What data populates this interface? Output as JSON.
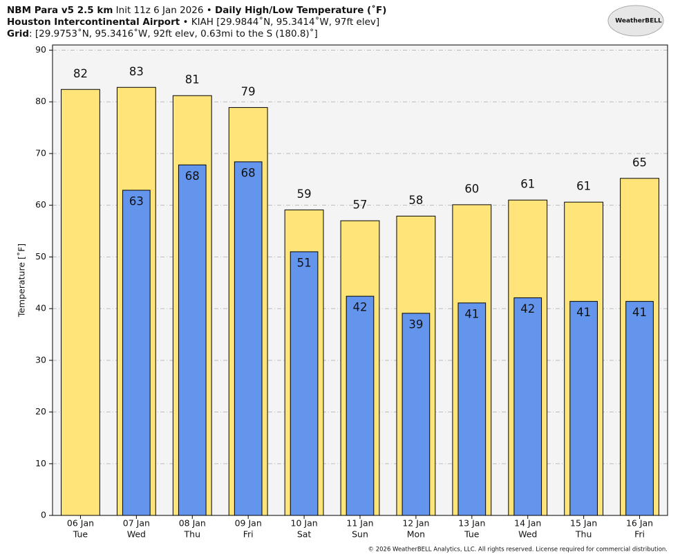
{
  "chart_data": {
    "type": "bar",
    "title_lines": [
      [
        "NBM Para v5 2.5 km",
        " Init 11z 6 Jan 2026 • ",
        "Daily High/Low Temperature (˚F)"
      ],
      [
        "Houston Intercontinental Airport",
        " • KIAH [29.9844˚N, 95.3414˚W, 97ft elev]"
      ],
      [
        "Grid",
        ": [29.9753˚N, 95.3416˚W, 92ft elev, 0.63mi to the S (180.8)˚]"
      ]
    ],
    "logo": "WeatherBELL",
    "footer": "© 2026 WeatherBELL Analytics, LLC. All rights reserved. License required for commercial distribution.",
    "y_label": "Temperature [˚F]",
    "categories": [
      "06 Jan",
      "07 Jan",
      "08 Jan",
      "09 Jan",
      "10 Jan",
      "11 Jan",
      "12 Jan",
      "13 Jan",
      "14 Jan",
      "15 Jan",
      "16 Jan"
    ],
    "weekdays": [
      "Tue",
      "Wed",
      "Thu",
      "Fri",
      "Sat",
      "Sun",
      "Mon",
      "Tue",
      "Wed",
      "Thu",
      "Fri"
    ],
    "series": [
      {
        "color": "#ffe47a",
        "values": [
          82.4,
          82.8,
          81.2,
          78.9,
          59.1,
          57.0,
          57.9,
          60.1,
          61.0,
          60.6,
          65.2
        ],
        "value_labels": [
          "82",
          "83",
          "81",
          "79",
          "59",
          "57",
          "58",
          "60",
          "61",
          "61",
          "65"
        ]
      },
      {
        "color": "#6495ed",
        "values": [
          null,
          62.9,
          67.8,
          68.4,
          51.0,
          42.4,
          39.1,
          41.1,
          42.1,
          41.4,
          41.4
        ],
        "value_labels": [
          null,
          "63",
          "68",
          "68",
          "51",
          "42",
          "39",
          "41",
          "42",
          "41",
          "41"
        ]
      }
    ],
    "ylim": [
      0,
      91
    ],
    "yticks": [
      0,
      10,
      20,
      30,
      40,
      50,
      60,
      70,
      80,
      90
    ],
    "grid": true
  }
}
